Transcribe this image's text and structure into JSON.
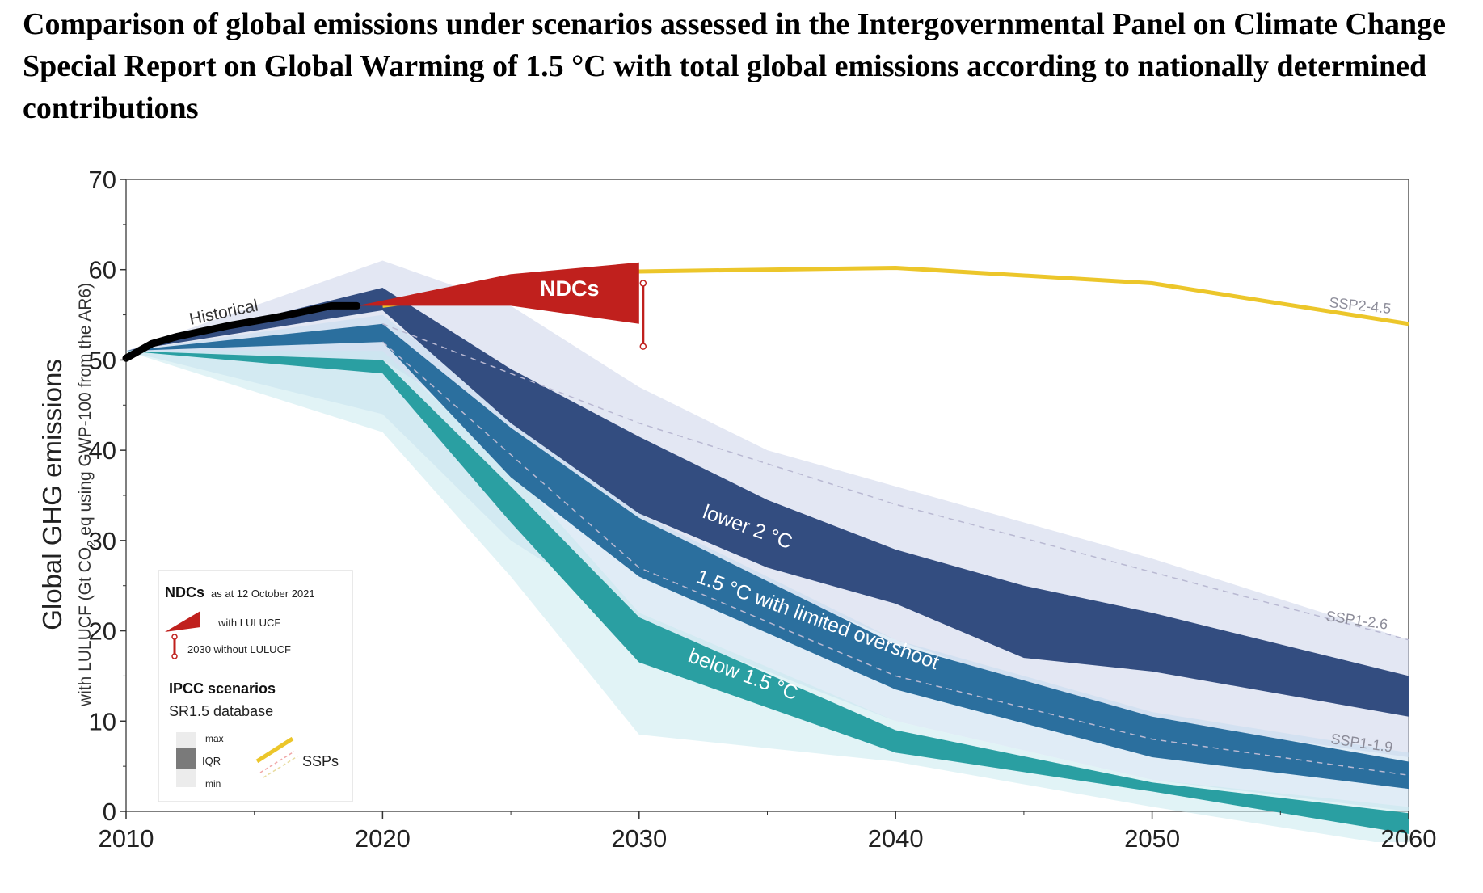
{
  "title": "Comparison of global emissions under scenarios assessed in the Intergovernmental Panel on Climate Change Special Report on Global Warming of 1.5 °C with total global emissions according to nationally determined contributions",
  "chart_data": {
    "type": "area",
    "ylabel_line1": "Global GHG emissions",
    "ylabel_line2_a": "with LULUCF (Gt CO",
    "ylabel_line2_sub": "2",
    "ylabel_line2_b": " eq using GWP-100 from the AR6)",
    "xlim": [
      2010,
      2060
    ],
    "ylim": [
      0,
      70
    ],
    "x_ticks": [
      2010,
      2020,
      2030,
      2040,
      2050,
      2060
    ],
    "y_ticks": [
      0,
      10,
      20,
      30,
      40,
      50,
      60,
      70
    ],
    "grid": false,
    "historical": {
      "label": "Historical",
      "x": [
        2010,
        2011,
        2012,
        2013,
        2014,
        2015,
        2016,
        2017,
        2018,
        2019
      ],
      "y": [
        50.2,
        51.8,
        52.6,
        53.2,
        53.8,
        54.3,
        54.8,
        55.4,
        56.0,
        56.0
      ]
    },
    "scenarios": [
      {
        "name": "below 1.5 °C",
        "color": "#2a9fa2",
        "x": [
          2010,
          2020,
          2025,
          2030,
          2040,
          2050,
          2060
        ],
        "max": [
          51.0,
          51.0,
          38.0,
          22.0,
          10.0,
          3.5,
          0.5
        ],
        "iqr_high": [
          51.0,
          50.0,
          36.0,
          21.5,
          9.0,
          3.2,
          -0.2
        ],
        "iqr_low": [
          51.0,
          48.5,
          32.0,
          16.5,
          6.5,
          2.2,
          -2.5
        ],
        "min": [
          51.0,
          42.0,
          26.0,
          8.5,
          5.5,
          0.5,
          -4.0
        ]
      },
      {
        "name": "1.5 °C with limited overshoot",
        "color": "#2b6f9e",
        "x": [
          2010,
          2020,
          2025,
          2030,
          2040,
          2050,
          2060
        ],
        "max": [
          51.0,
          55.0,
          44.0,
          33.0,
          19.0,
          11.0,
          6.5
        ],
        "iqr_high": [
          51.0,
          54.0,
          42.5,
          32.5,
          18.5,
          10.5,
          5.5
        ],
        "iqr_low": [
          51.0,
          52.0,
          37.0,
          26.0,
          13.5,
          6.0,
          2.5
        ],
        "min": [
          51.0,
          44.0,
          30.0,
          21.0,
          10.0,
          3.5,
          0.0
        ]
      },
      {
        "name": "lower 2 °C",
        "color": "#334d80",
        "x": [
          2010,
          2020,
          2025,
          2030,
          2035,
          2040,
          2045,
          2050,
          2060
        ],
        "max": [
          51.0,
          61.0,
          56.0,
          47.0,
          40.0,
          36.0,
          32.0,
          28.0,
          19.0
        ],
        "iqr_high": [
          51.0,
          58.0,
          49.0,
          41.5,
          34.5,
          29.0,
          25.0,
          22.0,
          15.0
        ],
        "iqr_low": [
          51.0,
          55.5,
          43.0,
          33.0,
          27.0,
          23.0,
          17.0,
          15.5,
          10.5
        ],
        "min": [
          51.0,
          50.0,
          41.0,
          30.0,
          25.0,
          19.0,
          14.0,
          10.0,
          6.0
        ]
      }
    ],
    "ssps": [
      {
        "name": "SSP2-4.5",
        "x": [
          2020,
          2030,
          2040,
          2050,
          2060
        ],
        "y": [
          56.0,
          59.8,
          60.2,
          58.5,
          54.0
        ]
      },
      {
        "name": "SSP1-2.6",
        "x": [
          2020,
          2030,
          2040,
          2050,
          2060
        ],
        "y": [
          54.0,
          43.0,
          34.0,
          26.5,
          19.0
        ]
      },
      {
        "name": "SSP1-1.9",
        "x": [
          2020,
          2030,
          2040,
          2050,
          2060
        ],
        "y": [
          52.0,
          27.0,
          15.0,
          8.0,
          4.0
        ]
      }
    ],
    "ndcs": {
      "label": "NDCs",
      "with_lulucf": {
        "x": [
          2019,
          2025,
          2030
        ],
        "upper": [
          56.0,
          59.5,
          60.8
        ],
        "lower": [
          56.0,
          56.0,
          54.0
        ]
      },
      "without_lulucf_2030": {
        "x": 2030,
        "low": 51.5,
        "high": 58.5
      },
      "color": "#c0201d"
    },
    "legend": {
      "ndcs_title": "NDCs",
      "ndcs_subtitle": "as at 12 October 2021",
      "with_lulucf": "with LULUCF",
      "without_lulucf": "2030 without LULUCF",
      "ipcc_title": "IPCC scenarios",
      "ipcc_subtitle": "SR1.5 database",
      "max": "max",
      "iqr": "IQR",
      "min": "min",
      "ssps": "SSPs"
    },
    "band_label_lower2": "lower 2 °C",
    "band_label_15": "1.5 °C with limited overshoot",
    "band_label_below15": "below 1.5 °C",
    "colors": {
      "ssp": "#ecc62a",
      "ndc": "#c0201d",
      "historical": "#000000"
    }
  }
}
